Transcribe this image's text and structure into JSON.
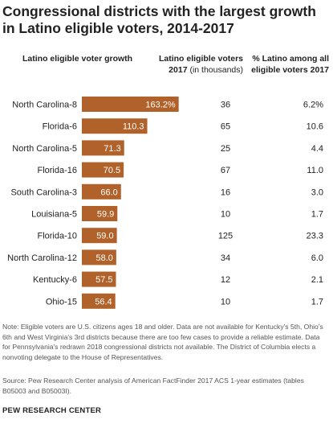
{
  "title": "Congressional districts with the largest growth in Latino eligible voters, 2014-2017",
  "columns": {
    "growth": "Latino eligible voter growth",
    "voters_main": "Latino eligible voters",
    "voters_year": "2017",
    "voters_unit": "(in thousands)",
    "pct_line1": "% Latino among all",
    "pct_line2": "eligible voters 2017"
  },
  "chart_data": {
    "type": "bar",
    "orientation": "horizontal",
    "title": "Congressional districts with the largest growth in Latino eligible voters, 2014-2017",
    "categories": [
      "North Carolina-8",
      "Florida-6",
      "North Carolina-5",
      "Florida-16",
      "South Carolina-3",
      "Louisiana-5",
      "Florida-10",
      "North Carolina-12",
      "Kentucky-6",
      "Ohio-15"
    ],
    "series": [
      {
        "name": "Latino eligible voter growth",
        "values": [
          163.2,
          110.3,
          71.3,
          70.5,
          66.0,
          59.9,
          59.0,
          58.0,
          57.5,
          56.4
        ],
        "labels": [
          "163.2%",
          "110.3",
          "71.3",
          "70.5",
          "66.0",
          "59.9",
          "59.0",
          "58.0",
          "57.5",
          "56.4"
        ],
        "color": "#b1622a"
      }
    ],
    "latino_eligible_voters_2017_thousands": [
      "36",
      "65",
      "25",
      "67",
      "16",
      "10",
      "125",
      "34",
      "12",
      "10"
    ],
    "pct_latino_among_all_eligible_voters_2017": [
      "6.2%",
      "10.6",
      "4.4",
      "11.0",
      "3.0",
      "1.7",
      "23.3",
      "6.0",
      "2.1",
      "1.7"
    ],
    "xlim": [
      0,
      165
    ],
    "grid": false,
    "legend": "none"
  },
  "note": "Note: Eligible voters are U.S. citizens ages 18 and older. Data are not available for Kentucky's 5th, Ohio's 6th and West Virginia's 3rd districts because there are too few cases to provide a reliable estimate. Data for Pennsylvania's redrawn 2018 congressional districts not available. The District of Columbia elects a nonvoting delegate to the House of Representatives.",
  "source": "Source: Pew Research Center analysis of American FactFinder 2017 ACS 1-year estimates (tables B05003 and B05003I).",
  "brand": "PEW RESEARCH CENTER"
}
